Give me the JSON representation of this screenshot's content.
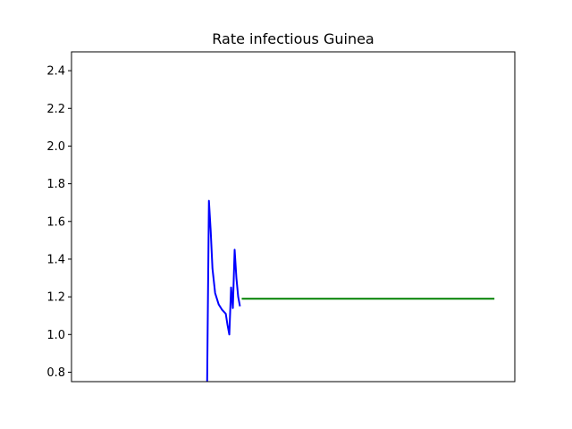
{
  "chart_data": {
    "type": "line",
    "title": "Rate infectious Guinea",
    "xlabel": "",
    "ylabel": "",
    "ylim": [
      0.75,
      2.5
    ],
    "xlim": [
      0,
      100
    ],
    "show_x_ticks": false,
    "grid": false,
    "y_ticks": [
      {
        "value": 0.8,
        "label": "0.8"
      },
      {
        "value": 1.0,
        "label": "1.0"
      },
      {
        "value": 1.2,
        "label": "1.2"
      },
      {
        "value": 1.4,
        "label": "1.4"
      },
      {
        "value": 1.6,
        "label": "1.6"
      },
      {
        "value": 1.8,
        "label": "1.8"
      },
      {
        "value": 2.0,
        "label": "2.0"
      },
      {
        "value": 2.2,
        "label": "2.2"
      },
      {
        "value": 2.4,
        "label": "2.4"
      }
    ],
    "series": [
      {
        "color": "#0000ff",
        "x": [
          30.6,
          31.0,
          31.4,
          31.8,
          32.4,
          33.2,
          34.0,
          34.8,
          35.2,
          35.6,
          36.0,
          36.4,
          36.8,
          37.2,
          37.6,
          38.0
        ],
        "y": [
          0.75,
          1.71,
          1.55,
          1.35,
          1.22,
          1.16,
          1.13,
          1.11,
          1.05,
          1.0,
          1.25,
          1.14,
          1.45,
          1.3,
          1.2,
          1.15
        ]
      },
      {
        "color": "#008000",
        "x": [
          38.4,
          95.4
        ],
        "y": [
          1.19,
          1.19
        ]
      }
    ]
  }
}
